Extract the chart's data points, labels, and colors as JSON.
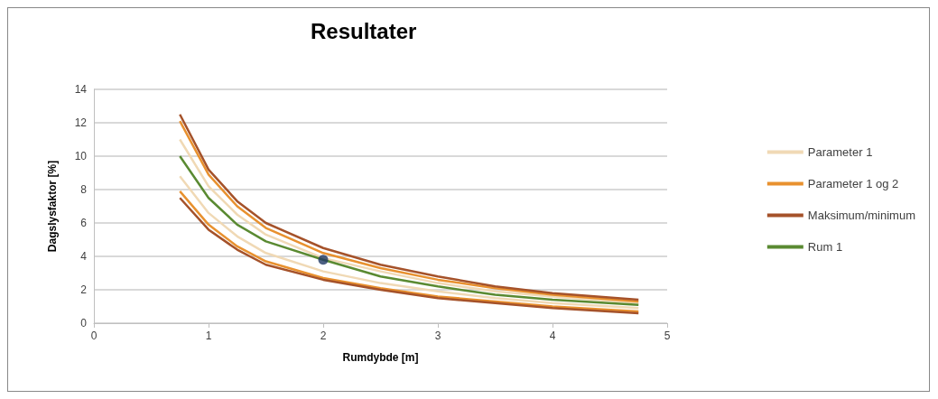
{
  "chart_data": {
    "type": "line",
    "title": "Resultater",
    "xlabel": "Rumdybde [m]",
    "ylabel": "Dagslysfaktor [%]",
    "x": [
      0.75,
      1,
      1.25,
      1.5,
      2,
      2.5,
      3,
      3.5,
      4,
      4.75
    ],
    "series": [
      {
        "name": "Parameter 1",
        "color": "#f0d9b5",
        "values": [
          11.0,
          8.2,
          6.5,
          5.3,
          3.9,
          3.1,
          2.4,
          1.9,
          1.6,
          1.2
        ]
      },
      {
        "color": "#f0d9b5",
        "values": [
          8.8,
          6.6,
          5.2,
          4.2,
          3.1,
          2.4,
          1.9,
          1.5,
          1.2,
          0.9
        ]
      },
      {
        "name": "Parameter 1 og 2",
        "color": "#e8912f",
        "values": [
          12.1,
          8.9,
          7.0,
          5.7,
          4.2,
          3.3,
          2.6,
          2.1,
          1.7,
          1.3
        ]
      },
      {
        "color": "#e8912f",
        "values": [
          7.9,
          5.9,
          4.6,
          3.7,
          2.7,
          2.1,
          1.6,
          1.3,
          1.0,
          0.7
        ]
      },
      {
        "name": "Maksimum/minimum",
        "color": "#a5522a",
        "values": [
          12.5,
          9.2,
          7.3,
          6.0,
          4.5,
          3.5,
          2.8,
          2.2,
          1.8,
          1.4
        ]
      },
      {
        "color": "#a5522a",
        "values": [
          7.5,
          5.6,
          4.4,
          3.5,
          2.6,
          2.0,
          1.5,
          1.2,
          0.9,
          0.6
        ]
      },
      {
        "name": "Rum 1",
        "color": "#5a8a32",
        "values": [
          10.0,
          7.5,
          5.9,
          4.9,
          3.8,
          2.8,
          2.2,
          1.7,
          1.4,
          1.1
        ]
      },
      {
        "type": "scatter",
        "marker": "circle",
        "color": "#1f3864",
        "x": [
          2
        ],
        "values": [
          3.8
        ]
      }
    ],
    "xlim": [
      0,
      5
    ],
    "xticks": [
      0,
      1,
      2,
      3,
      4,
      5
    ],
    "ylim": [
      0,
      14
    ],
    "yticks": [
      0,
      2,
      4,
      6,
      8,
      10,
      12,
      14
    ],
    "grid": "y",
    "legend": "right",
    "marker": "none",
    "line_style": "solid"
  }
}
